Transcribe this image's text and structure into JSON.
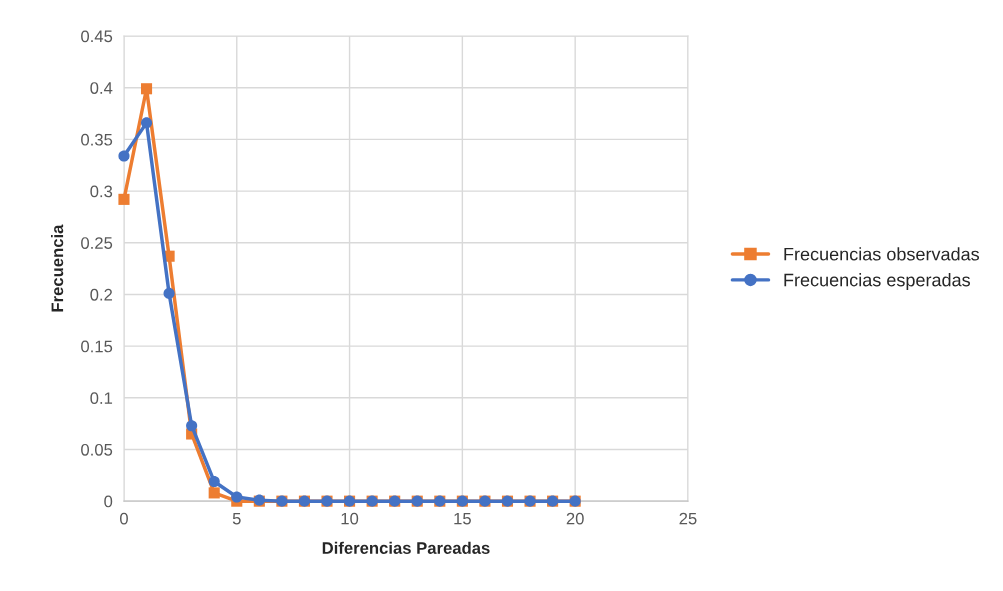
{
  "chart_data": {
    "type": "line",
    "xlabel": "Diferencias Pareadas",
    "ylabel": "Frecuencia",
    "x": [
      0,
      1,
      2,
      3,
      4,
      5,
      6,
      7,
      8,
      9,
      10,
      11,
      12,
      13,
      14,
      15,
      16,
      17,
      18,
      19,
      20
    ],
    "series": [
      {
        "name": "Frecuencias observadas",
        "color": "#ed7d31",
        "marker": "square",
        "values": [
          0.292,
          0.399,
          0.237,
          0.065,
          0.008,
          0,
          0,
          0,
          0,
          0,
          0,
          0,
          0,
          0,
          0,
          0,
          0,
          0,
          0,
          0,
          0
        ]
      },
      {
        "name": "Frecuencias esperadas",
        "color": "#4472c4",
        "marker": "circle",
        "values": [
          0.334,
          0.366,
          0.201,
          0.073,
          0.019,
          0.004,
          0.001,
          0,
          0,
          0,
          0,
          0,
          0,
          0,
          0,
          0,
          0,
          0,
          0,
          0,
          0
        ]
      }
    ],
    "xlim": [
      0,
      25
    ],
    "xticks": [
      0,
      5,
      10,
      15,
      20,
      25
    ],
    "ylim": [
      0,
      0.45
    ],
    "yticks": [
      0,
      0.05,
      0.1,
      0.15,
      0.2,
      0.25,
      0.3,
      0.35,
      0.4,
      0.45
    ],
    "grid": true,
    "legend": "right",
    "line_style": "solid"
  }
}
